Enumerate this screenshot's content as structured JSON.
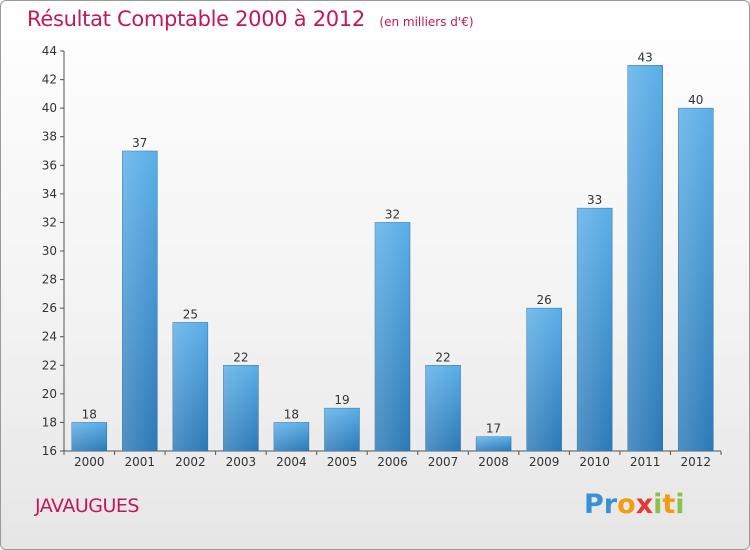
{
  "title": "Résultat Comptable 2000 à 2012",
  "unit": "(en milliers d'€)",
  "commune": "JAVAUGUES",
  "logo": {
    "letters": [
      "P",
      "r",
      "o",
      "x",
      "i",
      "t",
      "i"
    ],
    "colors": [
      "#3a8fd6",
      "#3a8fd6",
      "#f39c12",
      "#e53935",
      "#8bc34a",
      "#f39c12",
      "#8bc34a"
    ]
  },
  "colors": {
    "title": "#c2185b",
    "bar_top": "#5aaee8",
    "bar_bottom": "#2a78b6",
    "axis": "#555555",
    "grid": "#cccccc"
  },
  "chart_data": {
    "type": "bar",
    "categories": [
      "2000",
      "2001",
      "2002",
      "2003",
      "2004",
      "2005",
      "2006",
      "2007",
      "2008",
      "2009",
      "2010",
      "2011",
      "2012"
    ],
    "values": [
      18,
      37,
      25,
      22,
      18,
      19,
      32,
      22,
      17,
      26,
      33,
      43,
      40
    ],
    "ylim": [
      16,
      44
    ],
    "yticks": [
      16,
      18,
      20,
      22,
      24,
      26,
      28,
      30,
      32,
      34,
      36,
      38,
      40,
      42,
      44
    ],
    "grid": false,
    "title": "Résultat Comptable 2000 à 2012",
    "xlabel": "",
    "ylabel": ""
  }
}
